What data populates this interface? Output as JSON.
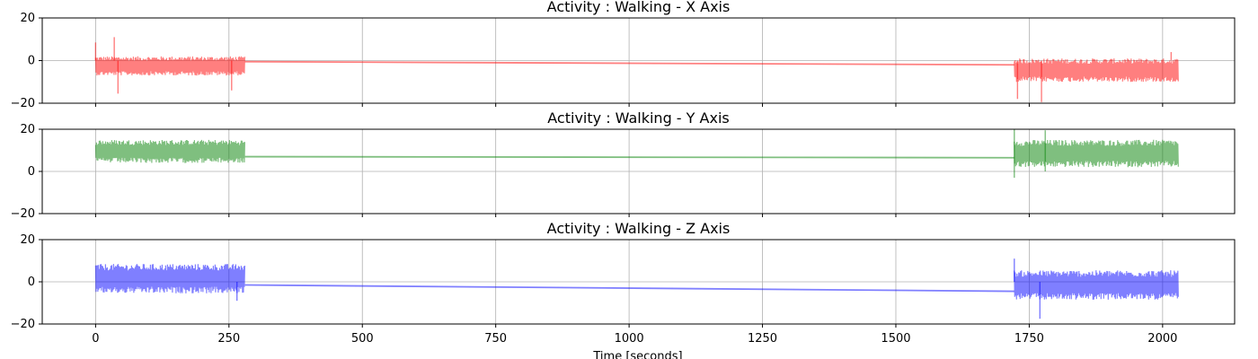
{
  "figure": {
    "xlabel": "Time [seconds]"
  },
  "chart_data": [
    {
      "type": "line",
      "title": "Activity : Walking - X Axis",
      "xlabel": "Time [seconds]",
      "ylabel": "",
      "xlim": [
        -100,
        2135
      ],
      "ylim": [
        -20,
        20
      ],
      "x_ticks": [
        0,
        250,
        500,
        750,
        1000,
        1250,
        1500,
        1750,
        2000
      ],
      "y_ticks": [
        -20,
        0,
        20
      ],
      "grid": true,
      "color": "#ff0000",
      "opacity": 0.5,
      "series": [
        {
          "segments": [
            {
              "x_start": 0,
              "x_end": 280,
              "center": -2.5,
              "half_range": 4.5
            },
            {
              "x_start": 1722,
              "x_end": 2030,
              "center": -4.5,
              "half_range": 5.5
            }
          ],
          "gap_line": {
            "x": [
              280,
              1722
            ],
            "y": [
              -0.5,
              -2.0
            ]
          },
          "spikes": [
            {
              "x": 0,
              "y": 8.5
            },
            {
              "x": 35,
              "y": 11
            },
            {
              "x": 42,
              "y": -15.5
            },
            {
              "x": 255,
              "y": -14
            },
            {
              "x": 1728,
              "y": -18
            },
            {
              "x": 1773,
              "y": -19.5
            },
            {
              "x": 2016,
              "y": 4
            }
          ]
        }
      ]
    },
    {
      "type": "line",
      "title": "Activity : Walking - Y Axis",
      "xlabel": "",
      "ylabel": "",
      "xlim": [
        -100,
        2135
      ],
      "ylim": [
        -20,
        20
      ],
      "x_ticks": [
        0,
        250,
        500,
        750,
        1000,
        1250,
        1500,
        1750,
        2000
      ],
      "y_ticks": [
        -20,
        0,
        20
      ],
      "grid": true,
      "color": "#008000",
      "opacity": 0.5,
      "series": [
        {
          "segments": [
            {
              "x_start": 0,
              "x_end": 280,
              "center": 9.5,
              "half_range": 5.5
            },
            {
              "x_start": 1722,
              "x_end": 2030,
              "center": 8.5,
              "half_range": 6.5
            }
          ],
          "gap_line": {
            "x": [
              280,
              1722
            ],
            "y": [
              7.0,
              6.5
            ]
          },
          "spikes": [
            {
              "x": 1722,
              "y": 20
            },
            {
              "x": 1722,
              "y": -3
            },
            {
              "x": 1780,
              "y": 19.5
            }
          ]
        }
      ]
    },
    {
      "type": "line",
      "title": "Activity : Walking - Z Axis",
      "xlabel": "Time [seconds]",
      "ylabel": "",
      "xlim": [
        -100,
        2135
      ],
      "ylim": [
        -20,
        20
      ],
      "x_ticks": [
        0,
        250,
        500,
        750,
        1000,
        1250,
        1500,
        1750,
        2000
      ],
      "y_ticks": [
        -20,
        0,
        20
      ],
      "grid": true,
      "color": "#0000ff",
      "opacity": 0.5,
      "series": [
        {
          "segments": [
            {
              "x_start": 0,
              "x_end": 280,
              "center": 1.5,
              "half_range": 7.0
            },
            {
              "x_start": 1722,
              "x_end": 2030,
              "center": -1.5,
              "half_range": 7.0
            }
          ],
          "gap_line": {
            "x": [
              280,
              1722
            ],
            "y": [
              -1.5,
              -4.5
            ]
          },
          "spikes": [
            {
              "x": 1722,
              "y": 11
            },
            {
              "x": 1770,
              "y": -17.5
            },
            {
              "x": 265,
              "y": -9
            }
          ]
        }
      ]
    }
  ]
}
